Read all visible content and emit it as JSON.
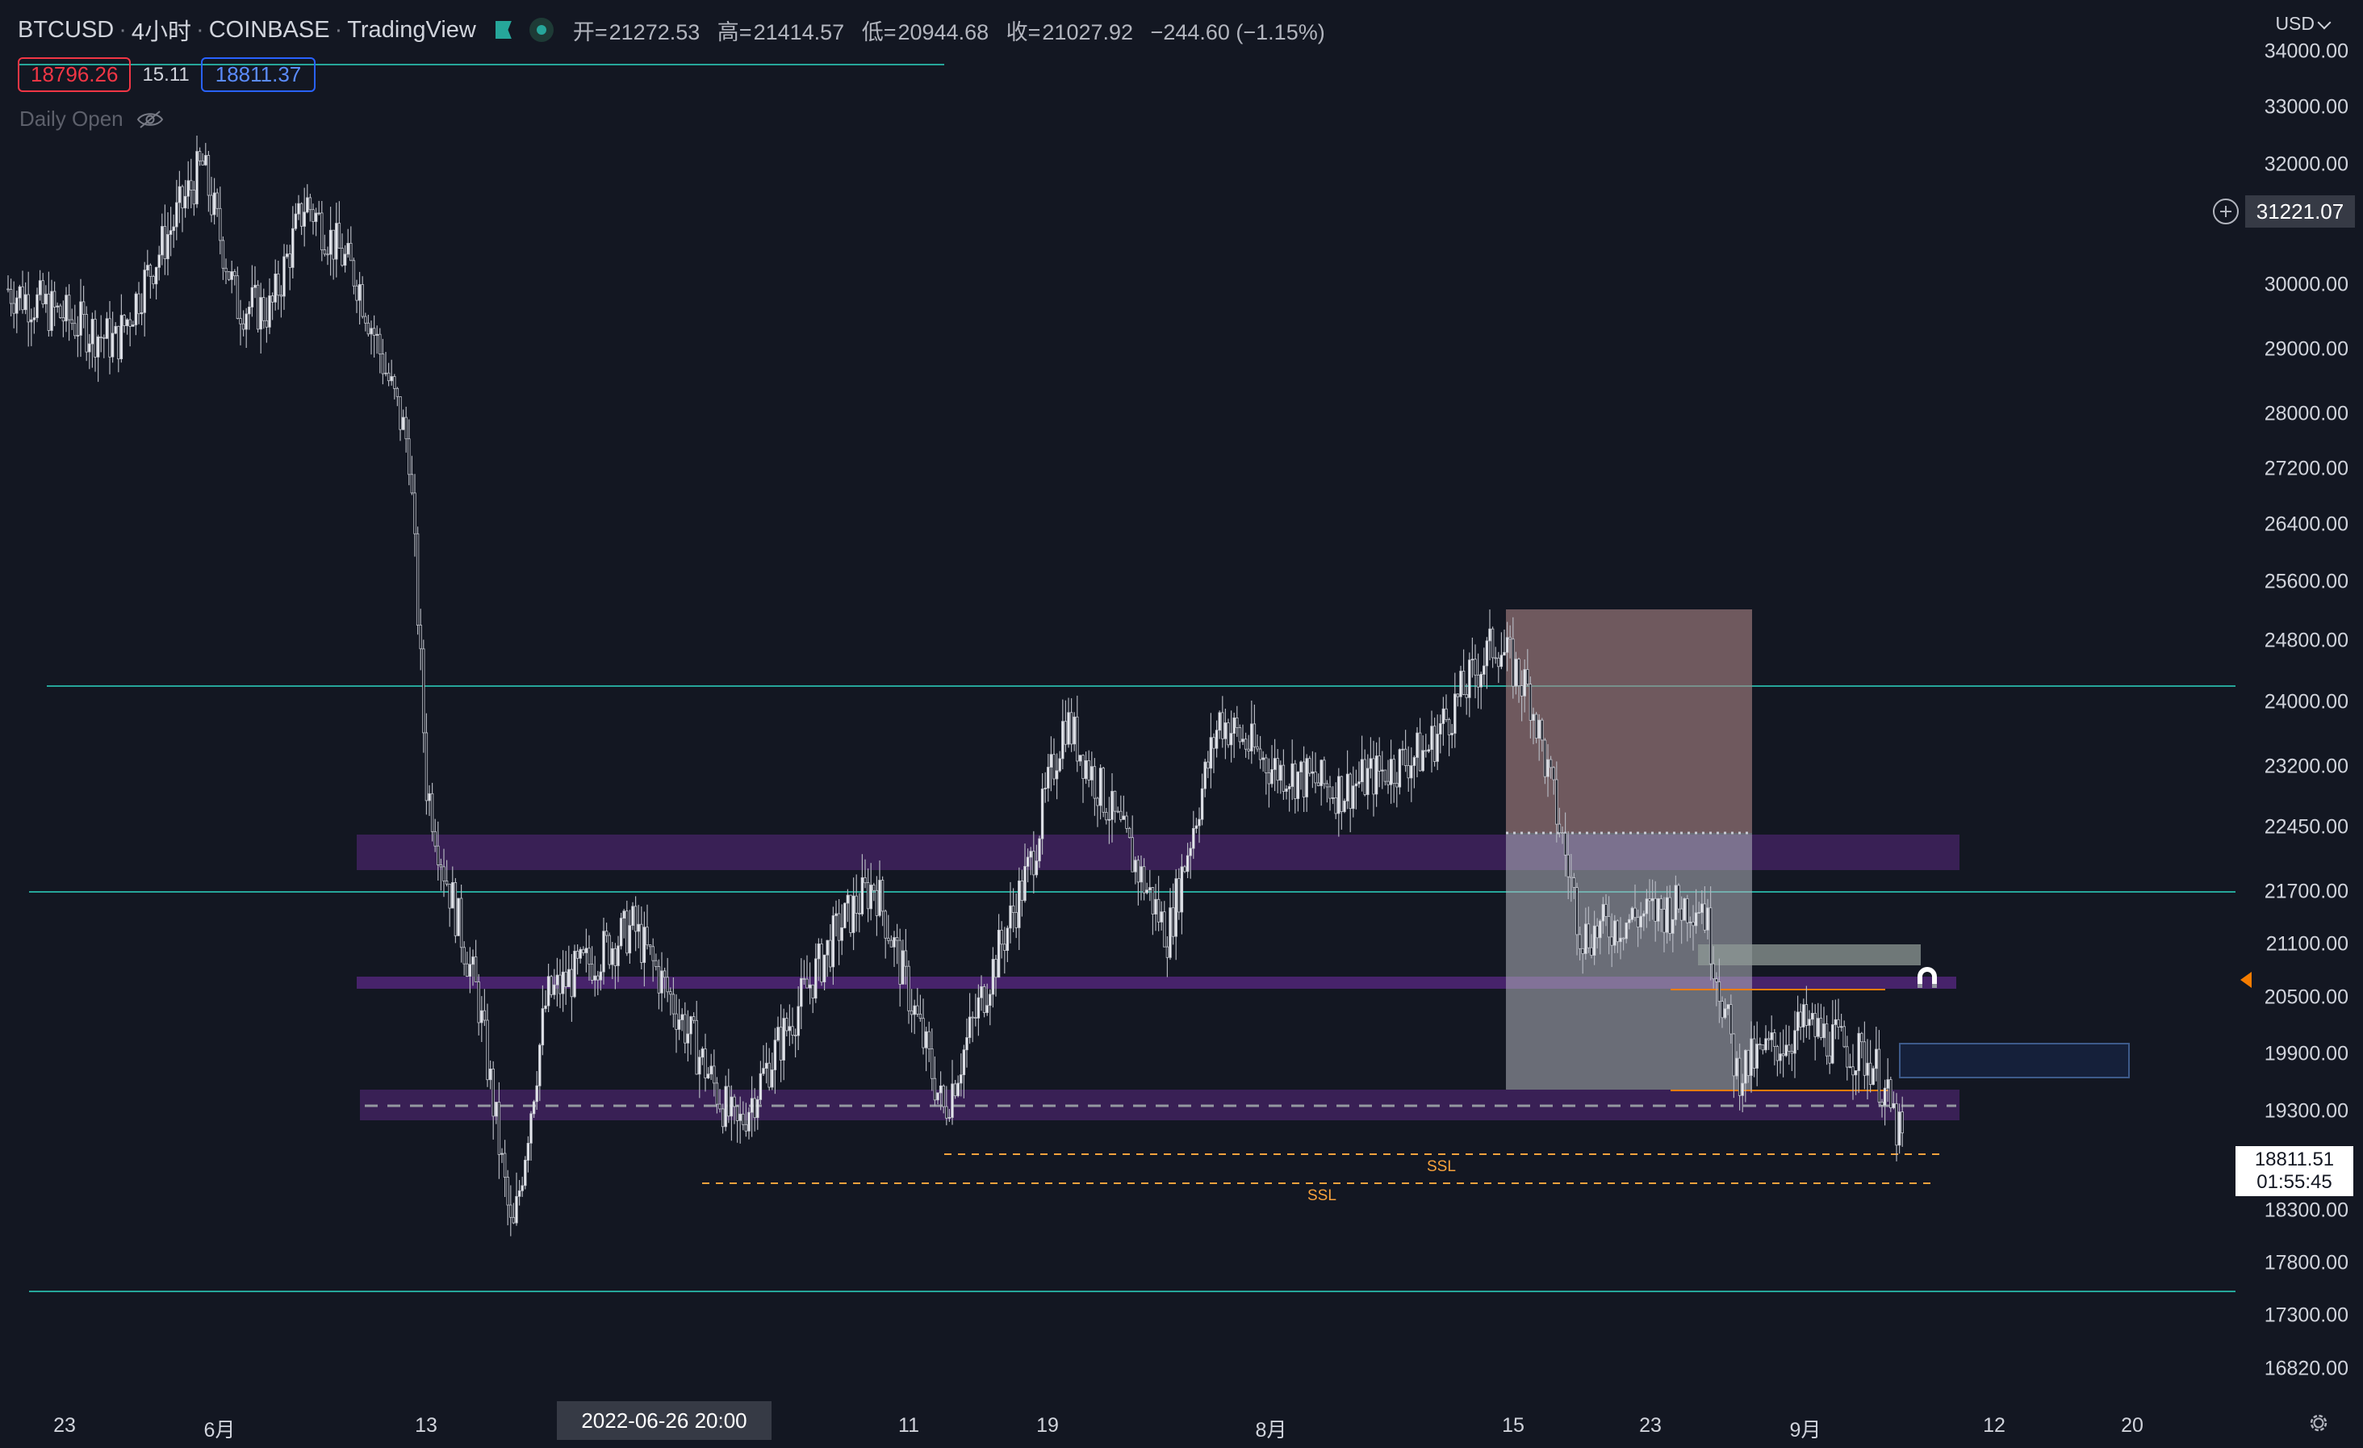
{
  "header": {
    "symbol": "BTCUSD",
    "interval": "4小时",
    "exchange": "COINBASE",
    "platform": "TradingView",
    "ohlc": {
      "open_label": "开=",
      "open": "21272.53",
      "high_label": "高=",
      "high": "21414.57",
      "low_label": "低=",
      "low": "20944.68",
      "close_label": "收=",
      "close": "21027.92",
      "change": "−244.60 (−1.15%)"
    }
  },
  "trade": {
    "sell": "18796.26",
    "spread": "15.11",
    "buy": "18811.37"
  },
  "indicator": {
    "name": "Daily Open"
  },
  "price_axis": {
    "currency": "USD",
    "ticks": [
      "34000.00",
      "33000.00",
      "32000.00",
      "30000.00",
      "29000.00",
      "28000.00",
      "27200.00",
      "26400.00",
      "25600.00",
      "24800.00",
      "24000.00",
      "23200.00",
      "22450.00",
      "21700.00",
      "21100.00",
      "20500.00",
      "19900.00",
      "19300.00",
      "18300.00",
      "17800.00",
      "17300.00",
      "16820.00"
    ],
    "hover_price": "31221.07",
    "last_price": "18811.51",
    "countdown": "01:55:45"
  },
  "time_axis": {
    "ticks": [
      "23",
      "6月",
      "13",
      "11",
      "19",
      "8月",
      "15",
      "23",
      "9月",
      "12",
      "20"
    ],
    "crosshair_label": "2022-06-26  20:00"
  },
  "annotations": {
    "ssl_upper": "SSL",
    "ssl_lower": "SSL"
  },
  "colors": {
    "background": "#131722",
    "teal_line": "#26a69a",
    "zone_purple": "#5b2a86",
    "ssl_orange": "#f7a23d",
    "candle": "#d1d4dc"
  },
  "chart_data": {
    "type": "candlestick",
    "title": "BTCUSD · 4小时 · COINBASE",
    "xlabel": "",
    "ylabel": "",
    "ylim": [
      16600,
      34400
    ],
    "x_range": [
      "2022-05-23",
      "2022-09-22"
    ],
    "series": [
      {
        "anchors": [
          [
            "2022-05-22",
            30000
          ],
          [
            "2022-05-26",
            29100
          ],
          [
            "2022-05-31",
            32000
          ],
          [
            "2022-06-02",
            29700
          ],
          [
            "2022-06-04",
            29600
          ],
          [
            "2022-06-06",
            31400
          ],
          [
            "2022-06-09",
            30100
          ],
          [
            "2022-06-12",
            27500
          ],
          [
            "2022-06-13",
            23000
          ],
          [
            "2022-06-14",
            22000
          ],
          [
            "2022-06-16",
            20500
          ],
          [
            "2022-06-18",
            18000
          ],
          [
            "2022-06-20",
            20500
          ],
          [
            "2022-06-25",
            21300
          ],
          [
            "2022-07-01",
            19100
          ],
          [
            "2022-07-07",
            21300
          ],
          [
            "2022-07-09",
            21800
          ],
          [
            "2022-07-13",
            19300
          ],
          [
            "2022-07-18",
            22000
          ],
          [
            "2022-07-20",
            23800
          ],
          [
            "2022-07-23",
            22500
          ],
          [
            "2022-07-26",
            21200
          ],
          [
            "2022-07-29",
            23800
          ],
          [
            "2022-08-01",
            23200
          ],
          [
            "2022-08-05",
            22900
          ],
          [
            "2022-08-10",
            23400
          ],
          [
            "2022-08-14",
            24800
          ],
          [
            "2022-08-16",
            24100
          ],
          [
            "2022-08-19",
            21200
          ],
          [
            "2022-08-22",
            21400
          ],
          [
            "2022-08-26",
            21600
          ],
          [
            "2022-08-28",
            19700
          ],
          [
            "2022-09-01",
            20200
          ],
          [
            "2022-09-05",
            19800
          ],
          [
            "2022-09-07",
            18800
          ]
        ]
      }
    ],
    "levels": {
      "horizontal_lines": [
        24000,
        21700,
        17400
      ],
      "supply_demand_zones": [
        [
          22070,
          22450
        ],
        [
          20550,
          20650
        ],
        [
          19250,
          19520
        ]
      ],
      "dashed_midline": 19380,
      "ssl_lines": [
        18900,
        18560
      ],
      "orange_levels": [
        20550,
        19580
      ]
    },
    "position_tool": {
      "start": "2022-08-15",
      "end": "2022-09-01",
      "entry": 22400,
      "stop": 25300,
      "target": 19580
    }
  }
}
